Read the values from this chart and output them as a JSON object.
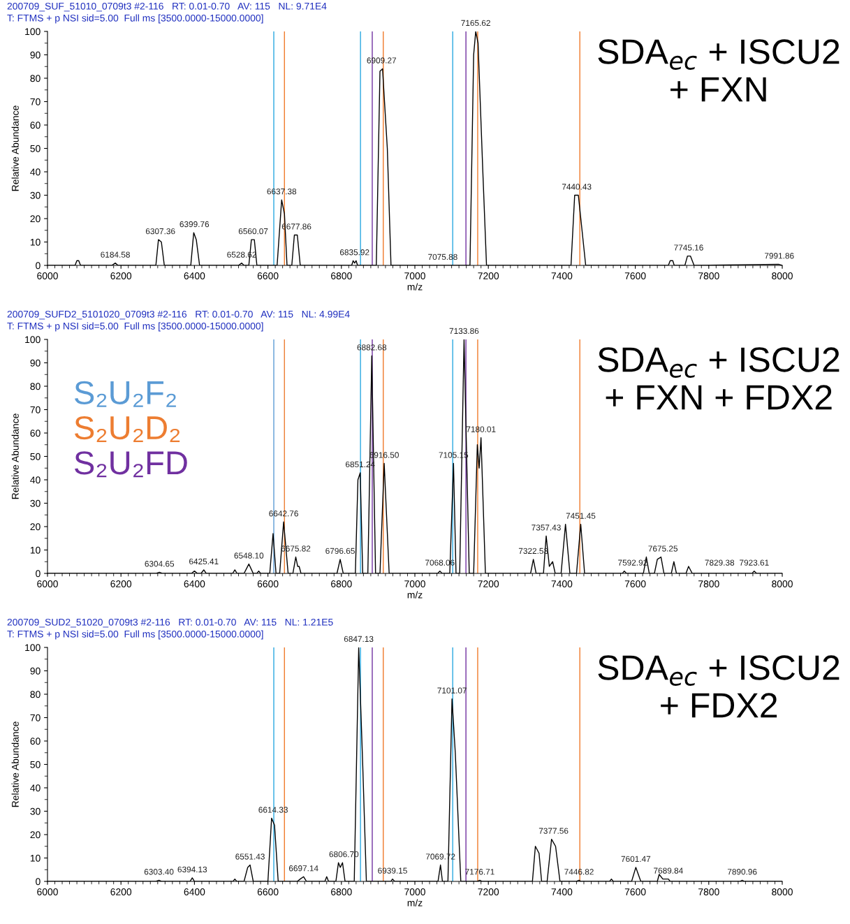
{
  "chart_data": [
    {
      "type": "line",
      "title": "SDA$_{ec}$ + ISCU2\n+ FXN",
      "xlabel": "m/z",
      "ylabel": "Relative Abundance",
      "xlim": [
        6000,
        8000
      ],
      "xticks": [
        6000,
        6200,
        6400,
        6600,
        6800,
        7000,
        7200,
        7400,
        7600,
        7800,
        8000
      ],
      "ylim": [
        0,
        100
      ],
      "yticks": [
        0,
        10,
        20,
        30,
        40,
        50,
        60,
        70,
        80,
        90,
        100
      ],
      "grid": false,
      "legend": false,
      "marker": "none",
      "line_style": "solid",
      "series": [
        {
          "color": "#000000",
          "x": [
            6000,
            6075,
            6080,
            6085,
            6090,
            6175,
            6184.58,
            6192,
            6295,
            6302,
            6310,
            6318,
            6390,
            6398,
            6405,
            6414,
            6520,
            6528.62,
            6535,
            6548,
            6555,
            6563,
            6570,
            6625,
            6637.38,
            6645,
            6652,
            6665,
            6672,
            6680,
            6688,
            6828,
            6832,
            6836,
            6840,
            6844,
            6895,
            6905,
            6912,
            6925,
            6935,
            7150,
            7160,
            7165.62,
            7172,
            7185,
            7195,
            7425,
            7435,
            7445,
            7455,
            7465,
            7690,
            7695,
            7702,
            7706,
            7735,
            7742,
            7750,
            7760,
            7990,
            8000
          ],
          "values": [
            0,
            0,
            2,
            2,
            0,
            0,
            1,
            0,
            0,
            11,
            10,
            0,
            0,
            14,
            11,
            0,
            0,
            1,
            0,
            0,
            11,
            11,
            0,
            0,
            28,
            22,
            0,
            0,
            13,
            13,
            0,
            0,
            2,
            1,
            2,
            0,
            0,
            83,
            84,
            50,
            0,
            0,
            90,
            100,
            95,
            40,
            0,
            0,
            30,
            30,
            15,
            0,
            0,
            2,
            2,
            0,
            0,
            4,
            4,
            0,
            0.5,
            0
          ]
        }
      ],
      "annotations": [
        "200709_SUF_51010_0709t3 #2-116   RT: 0.01-0.70   AV: 115   NL: 9.71E4",
        "T: FTMS + p NSI sid=5.00  Full ms [3500.0000-15000.0000]",
        {
          "text": "6184.58",
          "x": 6184.58,
          "y": 1
        },
        {
          "text": "6307.36",
          "x": 6307.36,
          "y": 11
        },
        {
          "text": "6399.76",
          "x": 6399.76,
          "y": 14
        },
        {
          "text": "6528.62",
          "x": 6528.62,
          "y": 1
        },
        {
          "text": "6560.07",
          "x": 6560.07,
          "y": 11
        },
        {
          "text": "6637.38",
          "x": 6637.38,
          "y": 28
        },
        {
          "text": "6677.86",
          "x": 6677.86,
          "y": 13
        },
        {
          "text": "6835.92",
          "x": 6835.92,
          "y": 2
        },
        {
          "text": "6909.27",
          "x": 6909.27,
          "y": 84
        },
        {
          "text": "7075.88",
          "x": 7075.88,
          "y": 0
        },
        {
          "text": "7165.62",
          "x": 7165.62,
          "y": 100
        },
        {
          "text": "7440.43",
          "x": 7440.43,
          "y": 30
        },
        {
          "text": "7745.16",
          "x": 7745.16,
          "y": 4
        },
        {
          "text": "7991.86",
          "x": 7991.86,
          "y": 0.5
        }
      ],
      "ref_lines": [
        {
          "axis": "x",
          "value": 6616,
          "color": "#29a8e0"
        },
        {
          "axis": "x",
          "value": 6852,
          "color": "#29a8e0"
        },
        {
          "axis": "x",
          "value": 7103,
          "color": "#29a8e0"
        },
        {
          "axis": "x",
          "value": 6645,
          "color": "#f07a2a"
        },
        {
          "axis": "x",
          "value": 6914,
          "color": "#f07a2a"
        },
        {
          "axis": "x",
          "value": 7171,
          "color": "#f07a2a"
        },
        {
          "axis": "x",
          "value": 7449,
          "color": "#f07a2a"
        },
        {
          "axis": "x",
          "value": 6884,
          "color": "#7030a0"
        },
        {
          "axis": "x",
          "value": 7139,
          "color": "#7030a0"
        }
      ]
    },
    {
      "type": "line",
      "title": "SDA$_{ec}$ + ISCU2\n+ FXN + FDX2",
      "xlabel": "m/z",
      "ylabel": "Relative Abundance",
      "xlim": [
        6000,
        8000
      ],
      "xticks": [
        6000,
        6200,
        6400,
        6600,
        6800,
        7000,
        7200,
        7400,
        7600,
        7800,
        8000
      ],
      "ylim": [
        0,
        100
      ],
      "yticks": [
        0,
        10,
        20,
        30,
        40,
        50,
        60,
        70,
        80,
        90,
        100
      ],
      "grid": false,
      "legend": false,
      "marker": "none",
      "line_style": "solid",
      "series": [
        {
          "color": "#000000",
          "x": [
            6000,
            6296,
            6304.65,
            6312,
            6392,
            6400,
            6408,
            6418,
            6425.41,
            6432,
            6504,
            6510,
            6516,
            6535,
            6548.1,
            6560,
            6570,
            6575,
            6580,
            6605,
            6614,
            6622,
            6632,
            6642.76,
            6655,
            6668,
            6675.82,
            6681,
            6685,
            6690,
            6788,
            6796.65,
            6805,
            6838,
            6845,
            6851.24,
            6858,
            6872,
            6882.68,
            6893,
            6905,
            6916.5,
            6930,
            7062,
            7068.06,
            7074,
            7095,
            7105.15,
            7112,
            7122,
            7133.86,
            7148,
            7160,
            7170,
            7175,
            7180.01,
            7192,
            7315,
            7322.53,
            7330,
            7350,
            7357.43,
            7366,
            7375,
            7382,
            7398,
            7410,
            7422,
            7440,
            7451.45,
            7462,
            7565,
            7570,
            7576,
            7622,
            7630,
            7638,
            7652,
            7660,
            7670,
            7678,
            7698,
            7705,
            7712,
            7738,
            7745,
            7755,
            7918,
            7923.61,
            7930,
            8000
          ],
          "values": [
            0,
            0,
            0.5,
            0,
            0,
            1,
            0,
            0,
            1.5,
            0,
            0,
            1.5,
            0,
            0,
            4,
            0,
            0,
            1,
            0,
            0,
            17,
            0,
            0,
            22,
            0,
            0,
            7,
            3,
            3,
            0,
            0,
            6,
            0,
            0,
            40,
            43,
            0,
            0,
            93,
            0,
            0,
            47,
            0,
            0,
            1,
            0,
            0,
            47,
            0,
            0,
            100,
            0,
            0,
            55,
            45,
            58,
            0,
            0,
            6,
            0,
            0,
            16,
            3,
            5,
            0,
            0,
            21,
            0,
            0,
            21,
            0,
            0,
            1,
            0,
            0,
            7,
            0,
            0,
            6,
            7,
            0,
            0,
            5,
            0,
            0,
            3,
            0,
            0,
            1,
            0,
            0
          ]
        }
      ],
      "annotations": [
        "200709_SUFD2_5101020_0709t3 #2-116   RT: 0.01-0.70   AV: 115   NL: 4.99E4",
        "T: FTMS + p NSI sid=5.00  Full ms [3500.0000-15000.0000]",
        {
          "text": "6304.65",
          "x": 6304.65,
          "y": 0.5
        },
        {
          "text": "6425.41",
          "x": 6425.41,
          "y": 1.5
        },
        {
          "text": "6548.10",
          "x": 6548.1,
          "y": 4
        },
        {
          "text": "6642.76",
          "x": 6642.76,
          "y": 22
        },
        {
          "text": "6675.82",
          "x": 6675.82,
          "y": 7
        },
        {
          "text": "6796.65",
          "x": 6796.65,
          "y": 6
        },
        {
          "text": "6851.24",
          "x": 6851.24,
          "y": 43
        },
        {
          "text": "6882.68",
          "x": 6882.68,
          "y": 93
        },
        {
          "text": "6916.50",
          "x": 6916.5,
          "y": 47
        },
        {
          "text": "7068.06",
          "x": 7068.06,
          "y": 1
        },
        {
          "text": "7105.15",
          "x": 7105.15,
          "y": 47
        },
        {
          "text": "7133.86",
          "x": 7133.86,
          "y": 100
        },
        {
          "text": "7180.01",
          "x": 7180.01,
          "y": 58
        },
        {
          "text": "7322.53",
          "x": 7322.53,
          "y": 6
        },
        {
          "text": "7357.43",
          "x": 7357.43,
          "y": 16
        },
        {
          "text": "7451.45",
          "x": 7451.45,
          "y": 21
        },
        {
          "text": "7592.92",
          "x": 7592.92,
          "y": 1
        },
        {
          "text": "7675.25",
          "x": 7675.25,
          "y": 7
        },
        {
          "text": "7829.38",
          "x": 7829.38,
          "y": 1
        },
        {
          "text": "7923.61",
          "x": 7923.61,
          "y": 1
        }
      ],
      "ref_lines": [
        {
          "axis": "x",
          "value": 6616,
          "color": "#5b9bd5",
          "label": "S₂U₂F₂"
        },
        {
          "axis": "x",
          "value": 6852,
          "color": "#29a8e0"
        },
        {
          "axis": "x",
          "value": 7103,
          "color": "#29a8e0"
        },
        {
          "axis": "x",
          "value": 6645,
          "color": "#ed7d31",
          "label": "S₂U₂D₂"
        },
        {
          "axis": "x",
          "value": 6914,
          "color": "#f07a2a"
        },
        {
          "axis": "x",
          "value": 7171,
          "color": "#f07a2a"
        },
        {
          "axis": "x",
          "value": 7449,
          "color": "#f07a2a"
        },
        {
          "axis": "x",
          "value": 6884,
          "color": "#7030a0",
          "label": "S₂U₂FD"
        },
        {
          "axis": "x",
          "value": 7139,
          "color": "#7030a0"
        }
      ]
    },
    {
      "type": "line",
      "title": "SDA$_{ec}$ + ISCU2\n+ FDX2",
      "xlabel": "m/z",
      "ylabel": "Relative Abundance",
      "xlim": [
        6000,
        8000
      ],
      "xticks": [
        6000,
        6200,
        6400,
        6600,
        6800,
        7000,
        7200,
        7400,
        7600,
        7800,
        8000
      ],
      "ylim": [
        0,
        100
      ],
      "yticks": [
        0,
        10,
        20,
        30,
        40,
        50,
        60,
        70,
        80,
        90,
        100
      ],
      "grid": false,
      "legend": false,
      "marker": "none",
      "line_style": "solid",
      "series": [
        {
          "color": "#000000",
          "x": [
            6000,
            6295,
            6303.4,
            6310,
            6388,
            6394.13,
            6400,
            6505,
            6510,
            6515,
            6535,
            6545,
            6551.43,
            6560,
            6600,
            6610,
            6618,
            6628,
            6680,
            6688,
            6697.14,
            6705,
            6755,
            6760,
            6765,
            6785,
            6792,
            6797,
            6803,
            6810,
            6835,
            6847.13,
            6858,
            6868,
            6935,
            6939.15,
            6945,
            7063,
            7069.72,
            7075,
            7090,
            7101.07,
            7110,
            7125,
            7170,
            7176.71,
            7183,
            7320,
            7328,
            7338,
            7345,
            7360,
            7372,
            7383,
            7395,
            7440,
            7446.82,
            7452,
            7530,
            7535,
            7540,
            7590,
            7601.47,
            7615,
            7660,
            7665,
            7675,
            7690,
            7695,
            7885,
            7890.96,
            7897,
            8000
          ],
          "values": [
            0,
            0,
            0.5,
            0,
            0,
            1.5,
            0,
            0,
            1,
            0,
            0,
            6,
            7,
            0,
            0,
            27,
            24,
            0,
            0,
            1,
            2,
            0,
            0,
            2,
            0,
            0,
            8,
            6,
            8,
            0,
            0,
            100,
            50,
            0,
            0,
            1,
            0,
            0,
            7,
            0,
            0,
            78,
            55,
            0,
            0,
            0.5,
            0,
            0,
            15,
            12,
            0,
            0,
            18,
            15,
            0,
            0,
            0.5,
            0,
            0,
            1,
            0,
            0,
            6,
            0,
            0,
            3,
            1,
            1,
            0,
            0,
            0.5,
            0,
            0
          ]
        }
      ],
      "annotations": [
        "200709_SUD2_51020_0709t3 #2-116   RT: 0.01-0.70   AV: 115   NL: 1.21E5",
        "T: FTMS + p NSI sid=5.00  Full ms [3500.0000-15000.0000]",
        {
          "text": "6303.40",
          "x": 6303.4,
          "y": 0.5
        },
        {
          "text": "6394.13",
          "x": 6394.13,
          "y": 1.5
        },
        {
          "text": "6551.43",
          "x": 6551.43,
          "y": 7
        },
        {
          "text": "6614.33",
          "x": 6614.33,
          "y": 27
        },
        {
          "text": "6697.14",
          "x": 6697.14,
          "y": 2
        },
        {
          "text": "6806.70",
          "x": 6806.7,
          "y": 8
        },
        {
          "text": "6847.13",
          "x": 6847.13,
          "y": 100
        },
        {
          "text": "6939.15",
          "x": 6939.15,
          "y": 1
        },
        {
          "text": "7069.72",
          "x": 7069.72,
          "y": 7
        },
        {
          "text": "7101.07",
          "x": 7101.07,
          "y": 78
        },
        {
          "text": "7176.71",
          "x": 7176.71,
          "y": 0.5
        },
        {
          "text": "7377.56",
          "x": 7377.56,
          "y": 18
        },
        {
          "text": "7446.82",
          "x": 7446.82,
          "y": 0.5
        },
        {
          "text": "7601.47",
          "x": 7601.47,
          "y": 6
        },
        {
          "text": "7689.84",
          "x": 7689.84,
          "y": 1
        },
        {
          "text": "7890.96",
          "x": 7890.96,
          "y": 0.5
        }
      ],
      "ref_lines": [
        {
          "axis": "x",
          "value": 6616,
          "color": "#29a8e0"
        },
        {
          "axis": "x",
          "value": 6852,
          "color": "#29a8e0"
        },
        {
          "axis": "x",
          "value": 7103,
          "color": "#29a8e0"
        },
        {
          "axis": "x",
          "value": 6645,
          "color": "#f07a2a"
        },
        {
          "axis": "x",
          "value": 6914,
          "color": "#f07a2a"
        },
        {
          "axis": "x",
          "value": 7171,
          "color": "#f07a2a"
        },
        {
          "axis": "x",
          "value": 7449,
          "color": "#f07a2a"
        },
        {
          "axis": "x",
          "value": 6884,
          "color": "#7030a0"
        },
        {
          "axis": "x",
          "value": 7139,
          "color": "#7030a0"
        }
      ]
    }
  ]
}
